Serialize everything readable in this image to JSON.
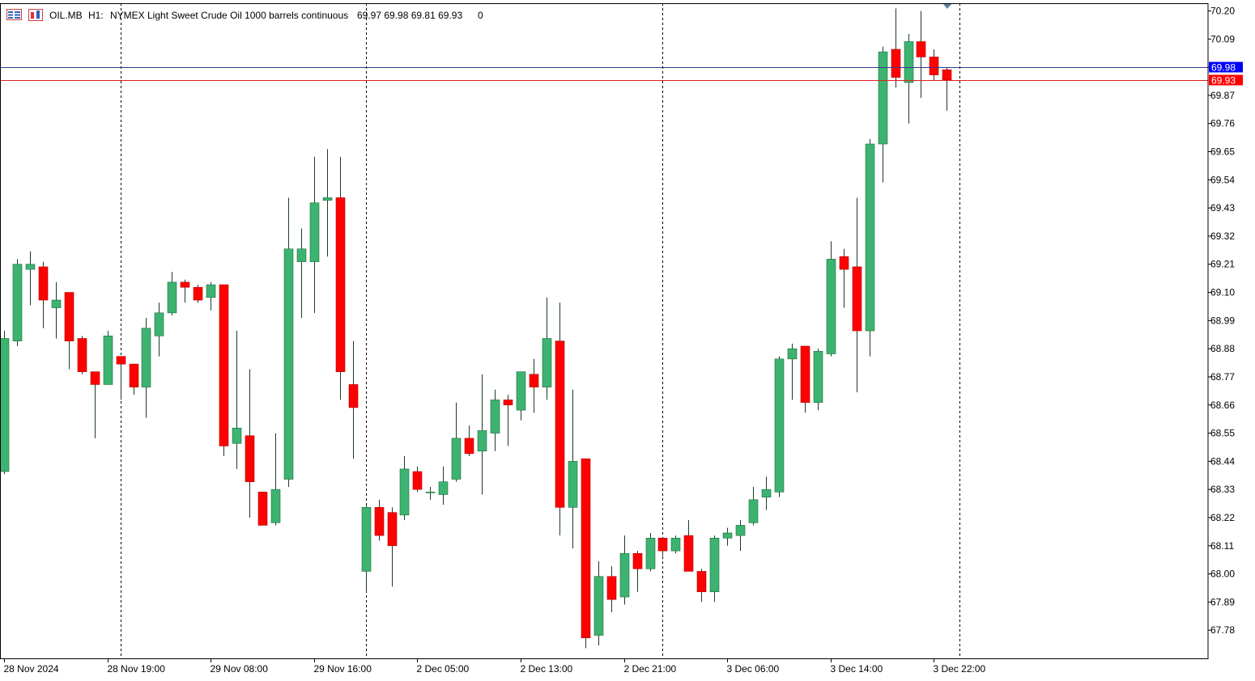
{
  "header": {
    "symbol": "OIL.MB",
    "timeframe": "H1:",
    "description": "NYMEX Light Sweet Crude Oil 1000 barrels continuous",
    "ohlc": "69.97 69.98 69.81 69.93",
    "volume": "0"
  },
  "colors": {
    "bull": "#3cb371",
    "bear": "#ff0000",
    "bid_line": "#2e3a8c",
    "ask_line": "#e02020",
    "bid_tag": "#0000ff",
    "ask_tag": "#ff0000",
    "grid_sep": "#000000"
  },
  "chart_data": {
    "type": "candlestick",
    "timeframe": "H1",
    "price_scale": {
      "min": 67.67,
      "max": 70.23,
      "ticks": [
        "70.20",
        "70.09",
        "69.98",
        "69.87",
        "69.76",
        "69.65",
        "69.54",
        "69.43",
        "69.32",
        "69.21",
        "69.10",
        "68.99",
        "68.88",
        "68.77",
        "68.66",
        "68.55",
        "68.44",
        "68.33",
        "68.22",
        "68.11",
        "68.00",
        "67.89",
        "67.78"
      ]
    },
    "time_labels": [
      "28 Nov 2024",
      "28 Nov 19:00",
      "29 Nov 08:00",
      "29 Nov 16:00",
      "2 Dec 05:00",
      "2 Dec 13:00",
      "2 Dec 21:00",
      "3 Dec 06:00",
      "3 Dec 14:00",
      "3 Dec 22:00"
    ],
    "period_separators": [
      9,
      28,
      51,
      74
    ],
    "current_bid": {
      "label": "69.98",
      "value": 69.98
    },
    "current_ask": {
      "label": "69.93",
      "value": 69.93
    },
    "candles": [
      {
        "o": 68.4,
        "h": 68.95,
        "l": 68.39,
        "c": 68.92
      },
      {
        "o": 68.91,
        "h": 69.23,
        "l": 68.89,
        "c": 69.21
      },
      {
        "o": 69.19,
        "h": 69.26,
        "l": 69.05,
        "c": 69.21
      },
      {
        "o": 69.2,
        "h": 69.22,
        "l": 68.96,
        "c": 69.07
      },
      {
        "o": 69.04,
        "h": 69.14,
        "l": 68.92,
        "c": 69.07
      },
      {
        "o": 69.1,
        "h": 69.1,
        "l": 68.8,
        "c": 68.91
      },
      {
        "o": 68.92,
        "h": 68.93,
        "l": 68.78,
        "c": 68.79
      },
      {
        "o": 68.79,
        "h": 68.79,
        "l": 68.53,
        "c": 68.74
      },
      {
        "o": 68.74,
        "h": 68.95,
        "l": 68.74,
        "c": 68.93
      },
      {
        "o": 68.85,
        "h": 68.85,
        "l": 68.68,
        "c": 68.82
      },
      {
        "o": 68.82,
        "h": 68.82,
        "l": 68.7,
        "c": 68.73
      },
      {
        "o": 68.73,
        "h": 69.0,
        "l": 68.61,
        "c": 68.96
      },
      {
        "o": 68.93,
        "h": 69.06,
        "l": 68.85,
        "c": 69.02
      },
      {
        "o": 69.02,
        "h": 69.18,
        "l": 69.01,
        "c": 69.14
      },
      {
        "o": 69.14,
        "h": 69.15,
        "l": 69.06,
        "c": 69.12
      },
      {
        "o": 69.12,
        "h": 69.13,
        "l": 69.06,
        "c": 69.07
      },
      {
        "o": 69.08,
        "h": 69.14,
        "l": 69.03,
        "c": 69.13
      },
      {
        "o": 69.13,
        "h": 69.13,
        "l": 68.46,
        "c": 68.5
      },
      {
        "o": 68.51,
        "h": 68.95,
        "l": 68.41,
        "c": 68.57
      },
      {
        "o": 68.54,
        "h": 68.8,
        "l": 68.22,
        "c": 68.36
      },
      {
        "o": 68.32,
        "h": 68.32,
        "l": 68.19,
        "c": 68.19
      },
      {
        "o": 68.2,
        "h": 68.55,
        "l": 68.19,
        "c": 68.33
      },
      {
        "o": 68.37,
        "h": 69.47,
        "l": 68.34,
        "c": 69.27
      },
      {
        "o": 69.22,
        "h": 69.35,
        "l": 69.0,
        "c": 69.27
      },
      {
        "o": 69.22,
        "h": 69.63,
        "l": 69.02,
        "c": 69.45
      },
      {
        "o": 69.46,
        "h": 69.66,
        "l": 69.24,
        "c": 69.47
      },
      {
        "o": 69.47,
        "h": 69.63,
        "l": 68.68,
        "c": 68.79
      },
      {
        "o": 68.74,
        "h": 68.91,
        "l": 68.45,
        "c": 68.65
      },
      {
        "o": 68.01,
        "h": 68.27,
        "l": 67.93,
        "c": 68.26
      },
      {
        "o": 68.26,
        "h": 68.29,
        "l": 68.13,
        "c": 68.15
      },
      {
        "o": 68.24,
        "h": 68.26,
        "l": 67.95,
        "c": 68.11
      },
      {
        "o": 68.23,
        "h": 68.46,
        "l": 68.21,
        "c": 68.41
      },
      {
        "o": 68.4,
        "h": 68.42,
        "l": 68.32,
        "c": 68.33
      },
      {
        "o": 68.32,
        "h": 68.34,
        "l": 68.29,
        "c": 68.32
      },
      {
        "o": 68.31,
        "h": 68.42,
        "l": 68.27,
        "c": 68.36
      },
      {
        "o": 68.37,
        "h": 68.67,
        "l": 68.36,
        "c": 68.53
      },
      {
        "o": 68.53,
        "h": 68.58,
        "l": 68.46,
        "c": 68.47
      },
      {
        "o": 68.48,
        "h": 68.78,
        "l": 68.31,
        "c": 68.56
      },
      {
        "o": 68.55,
        "h": 68.72,
        "l": 68.48,
        "c": 68.68
      },
      {
        "o": 68.68,
        "h": 68.7,
        "l": 68.5,
        "c": 68.66
      },
      {
        "o": 68.64,
        "h": 68.77,
        "l": 68.6,
        "c": 68.79
      },
      {
        "o": 68.78,
        "h": 68.84,
        "l": 68.63,
        "c": 68.73
      },
      {
        "o": 68.73,
        "h": 69.08,
        "l": 68.68,
        "c": 68.92
      },
      {
        "o": 68.91,
        "h": 69.06,
        "l": 68.15,
        "c": 68.26
      },
      {
        "o": 68.26,
        "h": 68.72,
        "l": 68.1,
        "c": 68.44
      },
      {
        "o": 68.45,
        "h": 68.45,
        "l": 67.71,
        "c": 67.75
      },
      {
        "o": 67.76,
        "h": 68.05,
        "l": 67.72,
        "c": 67.99
      },
      {
        "o": 67.99,
        "h": 68.03,
        "l": 67.85,
        "c": 67.9
      },
      {
        "o": 67.91,
        "h": 68.15,
        "l": 67.88,
        "c": 68.08
      },
      {
        "o": 68.08,
        "h": 68.09,
        "l": 67.93,
        "c": 68.02
      },
      {
        "o": 68.02,
        "h": 68.16,
        "l": 68.01,
        "c": 68.14
      },
      {
        "o": 68.14,
        "h": 68.14,
        "l": 68.07,
        "c": 68.09
      },
      {
        "o": 68.09,
        "h": 68.15,
        "l": 68.08,
        "c": 68.14
      },
      {
        "o": 68.15,
        "h": 68.21,
        "l": 68.01,
        "c": 68.01
      },
      {
        "o": 68.01,
        "h": 68.02,
        "l": 67.89,
        "c": 67.93
      },
      {
        "o": 67.93,
        "h": 68.15,
        "l": 67.89,
        "c": 68.14
      },
      {
        "o": 68.14,
        "h": 68.18,
        "l": 68.11,
        "c": 68.16
      },
      {
        "o": 68.15,
        "h": 68.21,
        "l": 68.09,
        "c": 68.19
      },
      {
        "o": 68.2,
        "h": 68.34,
        "l": 68.19,
        "c": 68.29
      },
      {
        "o": 68.3,
        "h": 68.38,
        "l": 68.25,
        "c": 68.33
      },
      {
        "o": 68.32,
        "h": 68.85,
        "l": 68.3,
        "c": 68.84
      },
      {
        "o": 68.84,
        "h": 68.9,
        "l": 68.68,
        "c": 68.88
      },
      {
        "o": 68.89,
        "h": 68.89,
        "l": 68.63,
        "c": 68.67
      },
      {
        "o": 68.67,
        "h": 68.88,
        "l": 68.64,
        "c": 68.87
      },
      {
        "o": 68.86,
        "h": 69.3,
        "l": 68.85,
        "c": 69.23
      },
      {
        "o": 69.24,
        "h": 69.27,
        "l": 69.04,
        "c": 69.19
      },
      {
        "o": 69.2,
        "h": 69.47,
        "l": 68.71,
        "c": 68.95
      },
      {
        "o": 68.95,
        "h": 69.7,
        "l": 68.85,
        "c": 69.68
      },
      {
        "o": 69.68,
        "h": 70.06,
        "l": 69.53,
        "c": 70.04
      },
      {
        "o": 70.05,
        "h": 70.21,
        "l": 69.9,
        "c": 69.94
      },
      {
        "o": 69.92,
        "h": 70.11,
        "l": 69.76,
        "c": 70.08
      },
      {
        "o": 70.08,
        "h": 70.2,
        "l": 69.86,
        "c": 70.02
      },
      {
        "o": 70.02,
        "h": 70.05,
        "l": 69.93,
        "c": 69.95
      },
      {
        "o": 69.97,
        "h": 69.98,
        "l": 69.81,
        "c": 69.93
      }
    ]
  }
}
